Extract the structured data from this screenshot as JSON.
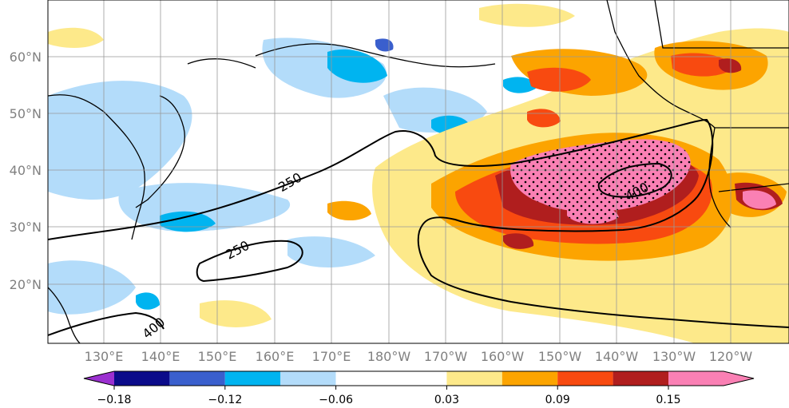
{
  "lon_labels": [
    "130°E",
    "140°E",
    "150°E",
    "160°E",
    "170°E",
    "180°W",
    "170°W",
    "160°W",
    "150°W",
    "140°W",
    "130°W",
    "120°W"
  ],
  "lat_labels": [
    "60°N",
    "50°N",
    "40°N",
    "30°N",
    "20°N"
  ],
  "contour_labels": [
    "250",
    "250",
    "400",
    "400"
  ],
  "colorbar": {
    "colors": [
      "#9b30d0",
      "#0b0b8a",
      "#3a5fcd",
      "#00b4f0",
      "#b3dcfa",
      "#ffffff",
      "#fde98a",
      "#fca400",
      "#f84a10",
      "#b01e1e",
      "#fa80b4"
    ],
    "tick_labels": [
      "−0.18",
      "−0.12",
      "−0.06",
      "0.03",
      "0.09",
      "0.15"
    ]
  }
}
